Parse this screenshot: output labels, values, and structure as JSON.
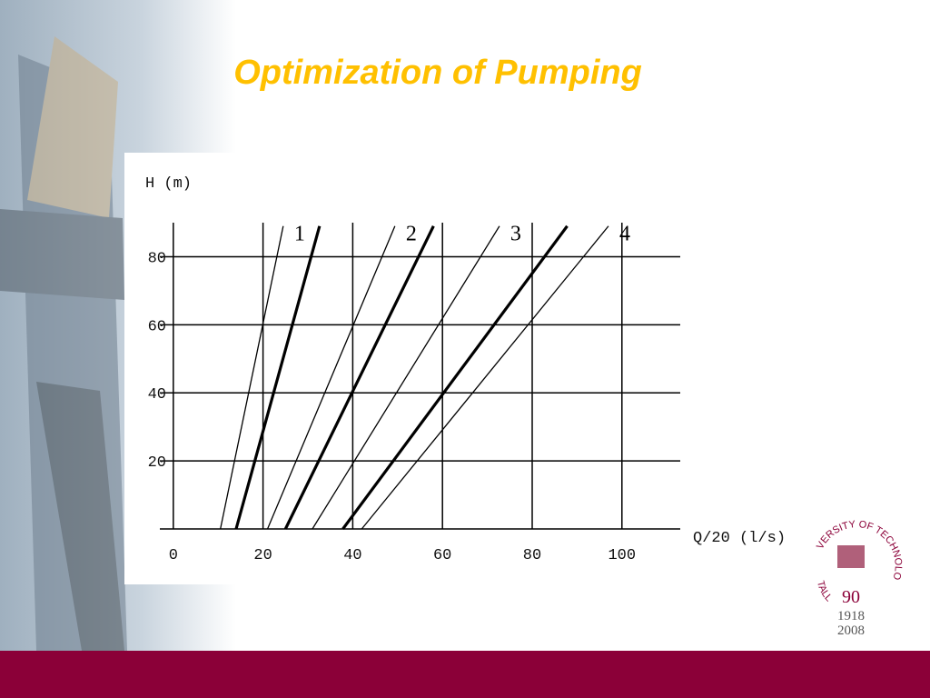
{
  "slide_title": "Optimization of Pumping",
  "chart_data": {
    "type": "line",
    "y_label": "H (m)",
    "x_label": "Q/20 (l/s)",
    "xlim": [
      -3,
      113
    ],
    "ylim": [
      0,
      90
    ],
    "xticks": [
      0,
      20,
      40,
      60,
      80,
      100
    ],
    "yticks": [
      20,
      40,
      60,
      80
    ],
    "grid": true,
    "series": [
      {
        "name": "1",
        "color": "#000000",
        "linewidth": 1.3,
        "x": [
          10.5,
          24.5
        ],
        "values": [
          0,
          89
        ]
      },
      {
        "color": "#000000",
        "linewidth": 3.2,
        "x": [
          14,
          32.6
        ],
        "values": [
          0,
          89
        ]
      },
      {
        "name": "2",
        "color": "#000000",
        "linewidth": 1.3,
        "x": [
          21,
          49.4
        ],
        "values": [
          0,
          89
        ]
      },
      {
        "color": "#000000",
        "linewidth": 3.2,
        "x": [
          25,
          58
        ],
        "values": [
          0,
          89
        ]
      },
      {
        "name": "3",
        "color": "#000000",
        "linewidth": 1.3,
        "x": [
          31,
          72.7
        ],
        "values": [
          0,
          89
        ]
      },
      {
        "color": "#000000",
        "linewidth": 3.2,
        "x": [
          37.8,
          87.8
        ],
        "values": [
          0,
          89
        ]
      },
      {
        "name": "4",
        "color": "#000000",
        "linewidth": 1.3,
        "x": [
          42,
          97
        ],
        "values": [
          0,
          89
        ]
      }
    ]
  },
  "logo": {
    "arc_top": "VERSITY OF TECHNOLOGY",
    "arc_bottom": "TALL",
    "number": "90",
    "year_start": "1918",
    "year_end": "2008"
  }
}
